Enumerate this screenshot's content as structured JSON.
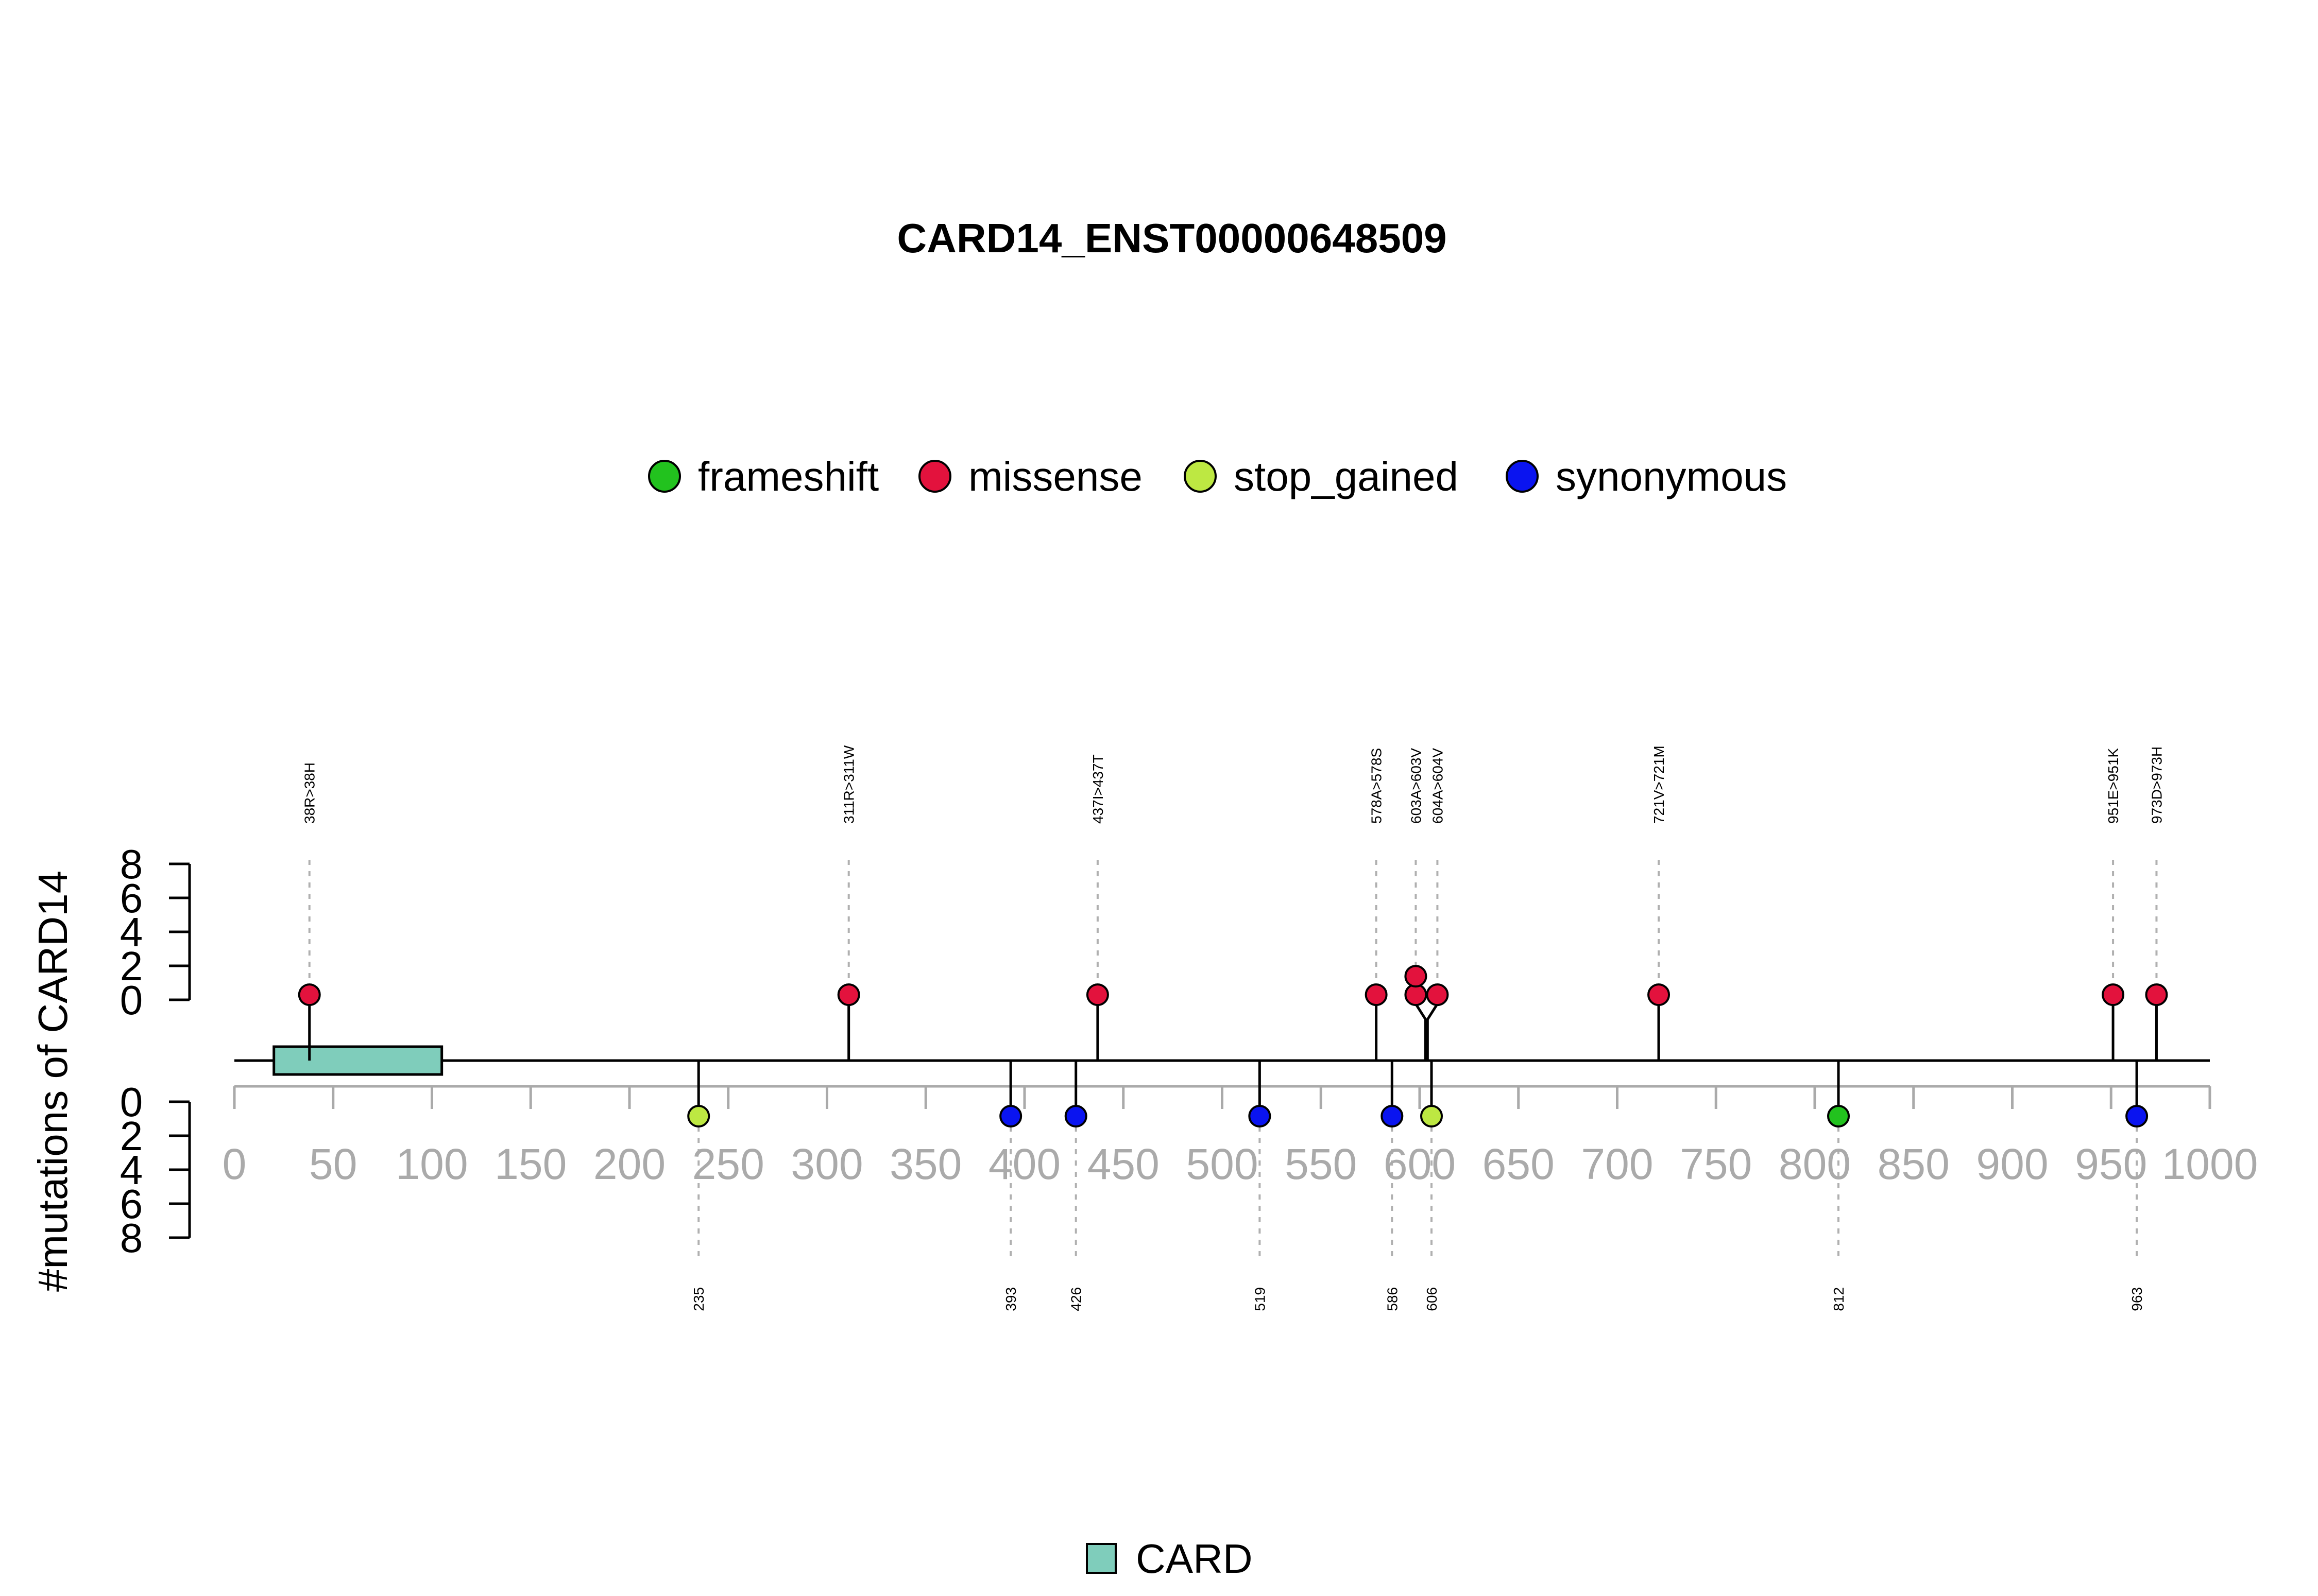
{
  "chart_data": {
    "type": "lollipop",
    "title": "CARD14_ENST00000648509",
    "ylabel": "#mutations of CARD14",
    "xlim": [
      0,
      1000
    ],
    "x_ticks": [
      0,
      50,
      100,
      150,
      200,
      250,
      300,
      350,
      400,
      450,
      500,
      550,
      600,
      650,
      700,
      750,
      800,
      850,
      900,
      950,
      1000
    ],
    "x_tick_labels": [
      "0",
      "50",
      "100",
      "150",
      "200",
      "250",
      "300",
      "350",
      "400",
      "450",
      "500",
      "550",
      "600",
      "650",
      "700",
      "750",
      "800",
      "850",
      "900",
      "950",
      "1000"
    ],
    "y_ticks": [
      0,
      2,
      4,
      6,
      8
    ],
    "y_tick_labels": [
      "0",
      "2",
      "4",
      "6",
      "8"
    ],
    "legend": [
      {
        "label": "frameshift",
        "color": "#22c21e"
      },
      {
        "label": "missense",
        "color": "#e3123d"
      },
      {
        "label": "stop_gained",
        "color": "#bde842"
      },
      {
        "label": "synonymous",
        "color": "#0a14f0"
      }
    ],
    "domain_legend": [
      {
        "label": "CARD",
        "color": "#7fcdbb"
      }
    ],
    "domains": [
      {
        "name": "CARD",
        "start": 20,
        "end": 105,
        "color": "#7fcdbb"
      }
    ],
    "top": [
      {
        "pos": 38,
        "label": "38R>38H",
        "type": "missense",
        "count": 1
      },
      {
        "pos": 311,
        "label": "311R>311W",
        "type": "missense",
        "count": 1
      },
      {
        "pos": 437,
        "label": "437I>437T",
        "type": "missense",
        "count": 1
      },
      {
        "pos": 578,
        "label": "578A>578S",
        "type": "missense",
        "count": 1
      },
      {
        "pos": 603,
        "label": "603A>603V",
        "type": "missense",
        "count": 2
      },
      {
        "pos": 604,
        "label": "604A>604V",
        "type": "missense",
        "count": 1
      },
      {
        "pos": 721,
        "label": "721V>721M",
        "type": "missense",
        "count": 1
      },
      {
        "pos": 951,
        "label": "951E>951K",
        "type": "missense",
        "count": 1
      },
      {
        "pos": 973,
        "label": "973D>973H",
        "type": "missense",
        "count": 1
      }
    ],
    "bottom": [
      {
        "pos": 235,
        "label": "235",
        "type": "stop_gained",
        "count": 1
      },
      {
        "pos": 393,
        "label": "393",
        "type": "synonymous",
        "count": 1
      },
      {
        "pos": 426,
        "label": "426",
        "type": "synonymous",
        "count": 1
      },
      {
        "pos": 519,
        "label": "519",
        "type": "synonymous",
        "count": 1
      },
      {
        "pos": 586,
        "label": "586",
        "type": "synonymous",
        "count": 1
      },
      {
        "pos": 606,
        "label": "606",
        "type": "stop_gained",
        "count": 1
      },
      {
        "pos": 812,
        "label": "812",
        "type": "frameshift",
        "count": 1
      },
      {
        "pos": 963,
        "label": "963",
        "type": "synonymous",
        "count": 1
      }
    ]
  }
}
